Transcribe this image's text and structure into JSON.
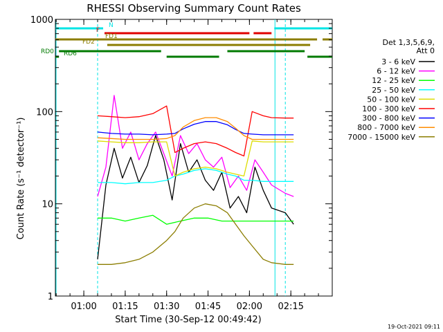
{
  "chart_data": {
    "type": "line",
    "title": "RHESSI Observing Summary Count Rates",
    "xlabel": "Start Time (30-Sep-12 00:49:42)",
    "ylabel": "Count Rate (s⁻¹ detector⁻¹)",
    "y_scale": "log",
    "ylim": [
      1,
      1000
    ],
    "xlim": [
      "00:49:42",
      "02:30:00"
    ],
    "x_ticks": [
      "01:00",
      "01:15",
      "01:30",
      "01:45",
      "02:00",
      "02:15"
    ],
    "y_ticks": [
      "1",
      "10",
      "100",
      "1000"
    ],
    "grid": false,
    "legend_title": [
      "Det 1,3,5,6,9,",
      "Att 0"
    ],
    "legend_position": "right",
    "timestamp": "19-Oct-2021 09:11",
    "data_gaps": [
      [
        "00:49:42",
        "01:05:00"
      ],
      [
        "02:09:00",
        "02:13:00"
      ]
    ],
    "flag_bars": [
      {
        "label": "N",
        "color": "#00e5e5",
        "segments": [
          [
            "00:49:42",
            "01:07:00"
          ],
          [
            "02:09:00",
            "02:30:00"
          ]
        ]
      },
      {
        "label": "F",
        "color": "#e00000",
        "segments": [
          [
            "01:07:30",
            "02:00:00"
          ],
          [
            "02:01:30",
            "02:08:00"
          ]
        ]
      },
      {
        "label": "FD1",
        "color": "#8b7d00",
        "segments": [
          [
            "00:49:42",
            "02:24:30"
          ],
          [
            "02:26:30",
            "02:30:00"
          ]
        ]
      },
      {
        "label": "FD2",
        "color": "#8b7d00",
        "segments": [
          [
            "01:08:30",
            "02:22:00"
          ]
        ]
      },
      {
        "label": "RD0",
        "color": "#007a00",
        "segments": [
          [
            "00:51:00",
            "01:28:00"
          ],
          [
            "01:52:00",
            "02:20:00"
          ]
        ]
      },
      {
        "label": "RD6",
        "color": "#007a00",
        "segments": [
          [
            "00:49:42",
            "00:51:00"
          ],
          [
            "01:30:00",
            "01:49:00"
          ],
          [
            "02:21:00",
            "02:30:00"
          ]
        ]
      }
    ],
    "series": [
      {
        "name": "3 - 6 keV",
        "color": "#000000",
        "x": [
          "01:05",
          "01:08",
          "01:11",
          "01:14",
          "01:17",
          "01:20",
          "01:23",
          "01:26",
          "01:29",
          "01:32",
          "01:35",
          "01:38",
          "01:41",
          "01:44",
          "01:47",
          "01:50",
          "01:53",
          "01:56",
          "01:59",
          "02:02",
          "02:05",
          "02:08",
          "02:13",
          "02:16"
        ],
        "values": [
          2.5,
          16,
          40,
          19,
          32,
          17,
          26,
          55,
          30,
          11,
          45,
          22,
          30,
          18,
          14,
          22,
          9,
          12,
          8,
          25,
          14,
          9,
          8,
          6
        ]
      },
      {
        "name": "6 - 12 keV",
        "color": "#ff00ff",
        "x": [
          "01:05",
          "01:08",
          "01:11",
          "01:14",
          "01:17",
          "01:20",
          "01:23",
          "01:26",
          "01:29",
          "01:32",
          "01:35",
          "01:38",
          "01:41",
          "01:44",
          "01:47",
          "01:50",
          "01:53",
          "01:56",
          "01:59",
          "02:02",
          "02:05",
          "02:08",
          "02:13",
          "02:16"
        ],
        "values": [
          12,
          25,
          150,
          40,
          60,
          30,
          45,
          60,
          35,
          20,
          55,
          35,
          45,
          30,
          25,
          32,
          15,
          20,
          14,
          30,
          22,
          16,
          13,
          12
        ]
      },
      {
        "name": "12 - 25 keV",
        "color": "#00ff00",
        "x": [
          "01:05",
          "01:10",
          "01:15",
          "01:20",
          "01:25",
          "01:30",
          "01:35",
          "01:40",
          "01:45",
          "01:50",
          "01:55",
          "02:00",
          "02:05",
          "02:08",
          "02:13",
          "02:16"
        ],
        "values": [
          7,
          7,
          6.5,
          7,
          7.5,
          6,
          6.5,
          7,
          7,
          6.5,
          6.5,
          6.5,
          6.5,
          6.5,
          6.5,
          6.5
        ]
      },
      {
        "name": "25 - 50 keV",
        "color": "#00ffff",
        "x": [
          "01:05",
          "01:10",
          "01:15",
          "01:20",
          "01:25",
          "01:30",
          "01:33",
          "01:36",
          "01:40",
          "01:44",
          "01:48",
          "01:52",
          "01:55",
          "01:58",
          "02:01",
          "02:05",
          "02:08",
          "02:13",
          "02:16"
        ],
        "values": [
          17,
          17,
          16.5,
          17,
          17,
          18,
          20,
          21,
          23,
          24,
          23,
          21,
          20,
          18,
          18,
          17.5,
          17.5,
          17.5,
          17.5
        ]
      },
      {
        "name": "50 - 100 keV",
        "color": "#dddd00",
        "x": [
          "01:05",
          "01:10",
          "01:15",
          "01:20",
          "01:25",
          "01:30",
          "01:33",
          "01:36",
          "01:40",
          "01:44",
          "01:48",
          "01:52",
          "01:55",
          "01:58",
          "02:01",
          "02:05",
          "02:08",
          "02:13",
          "02:16"
        ],
        "values": [
          48,
          47,
          46,
          46,
          47,
          47,
          20,
          22,
          24,
          25,
          24,
          22,
          21,
          20,
          48,
          47,
          47,
          47,
          47
        ]
      },
      {
        "name": "100 - 300 keV",
        "color": "#ff0000",
        "x": [
          "01:05",
          "01:10",
          "01:15",
          "01:20",
          "01:25",
          "01:30",
          "01:33",
          "01:36",
          "01:40",
          "01:44",
          "01:48",
          "01:52",
          "01:55",
          "01:58",
          "02:01",
          "02:05",
          "02:08",
          "02:13",
          "02:16"
        ],
        "values": [
          90,
          88,
          86,
          88,
          95,
          115,
          36,
          40,
          45,
          47,
          45,
          40,
          36,
          33,
          100,
          90,
          86,
          85,
          85
        ]
      },
      {
        "name": "300 - 800 keV",
        "color": "#0000ff",
        "x": [
          "01:05",
          "01:10",
          "01:15",
          "01:20",
          "01:25",
          "01:30",
          "01:33",
          "01:36",
          "01:40",
          "01:44",
          "01:48",
          "01:52",
          "01:55",
          "01:58",
          "02:01",
          "02:05",
          "02:08",
          "02:13",
          "02:16"
        ],
        "values": [
          60,
          58,
          57,
          57,
          56,
          57,
          58,
          65,
          73,
          78,
          78,
          72,
          64,
          58,
          57,
          56,
          56,
          56,
          56
        ]
      },
      {
        "name": "800 - 7000 keV",
        "color": "#ff8c00",
        "x": [
          "01:05",
          "01:10",
          "01:15",
          "01:20",
          "01:25",
          "01:30",
          "01:33",
          "01:36",
          "01:40",
          "01:44",
          "01:48",
          "01:52",
          "01:55",
          "01:58",
          "02:01",
          "02:05",
          "02:08",
          "02:13",
          "02:16"
        ],
        "values": [
          52,
          51,
          50,
          50,
          50,
          51,
          55,
          68,
          80,
          86,
          86,
          78,
          66,
          55,
          50,
          50,
          50,
          50,
          50
        ]
      },
      {
        "name": "7000 - 15000 keV",
        "color": "#8b7d00",
        "x": [
          "01:05",
          "01:10",
          "01:15",
          "01:20",
          "01:25",
          "01:30",
          "01:33",
          "01:36",
          "01:40",
          "01:44",
          "01:48",
          "01:52",
          "01:55",
          "01:58",
          "02:01",
          "02:05",
          "02:08",
          "02:13",
          "02:16"
        ],
        "values": [
          2.2,
          2.2,
          2.3,
          2.5,
          3,
          4,
          5,
          7,
          9,
          10,
          9.5,
          8,
          6,
          4.5,
          3.5,
          2.5,
          2.3,
          2.2,
          2.2
        ]
      }
    ]
  }
}
